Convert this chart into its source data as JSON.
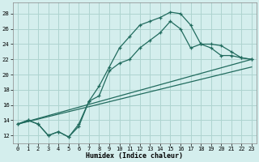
{
  "xlabel": "Humidex (Indice chaleur)",
  "background_color": "#d4eeed",
  "grid_color": "#aed4d0",
  "line_color": "#216b5e",
  "xlim": [
    -0.5,
    23.5
  ],
  "ylim": [
    11.0,
    29.5
  ],
  "xticks": [
    0,
    1,
    2,
    3,
    4,
    5,
    6,
    7,
    8,
    9,
    10,
    11,
    12,
    13,
    14,
    15,
    16,
    17,
    18,
    19,
    20,
    21,
    22,
    23
  ],
  "yticks": [
    12,
    14,
    16,
    18,
    20,
    22,
    24,
    26,
    28
  ],
  "curve1_x": [
    0,
    1,
    2,
    3,
    4,
    5,
    6,
    7,
    8,
    9,
    10,
    11,
    12,
    13,
    14,
    15,
    16,
    17,
    18,
    19,
    20,
    21,
    22,
    23
  ],
  "curve1_y": [
    13.5,
    14.0,
    13.5,
    12.0,
    12.5,
    11.8,
    13.2,
    16.5,
    18.5,
    21.0,
    23.5,
    25.0,
    26.5,
    27.0,
    27.5,
    28.2,
    28.0,
    26.5,
    24.0,
    23.5,
    22.5,
    22.5,
    22.2,
    22.0
  ],
  "curve2_x": [
    0,
    1,
    2,
    3,
    4,
    5,
    6,
    7,
    8,
    9,
    10,
    11,
    12,
    13,
    14,
    15,
    16,
    17,
    18,
    19,
    20,
    21,
    22,
    23
  ],
  "curve2_y": [
    13.5,
    14.0,
    13.5,
    12.0,
    12.5,
    11.8,
    13.5,
    16.5,
    17.2,
    20.5,
    21.5,
    22.0,
    23.5,
    24.5,
    25.5,
    27.0,
    26.0,
    23.5,
    24.0,
    24.0,
    23.8,
    23.0,
    22.2,
    22.0
  ],
  "line1_x": [
    0,
    23
  ],
  "line1_y": [
    13.5,
    22.0
  ],
  "line2_x": [
    0,
    23
  ],
  "line2_y": [
    13.5,
    21.0
  ]
}
